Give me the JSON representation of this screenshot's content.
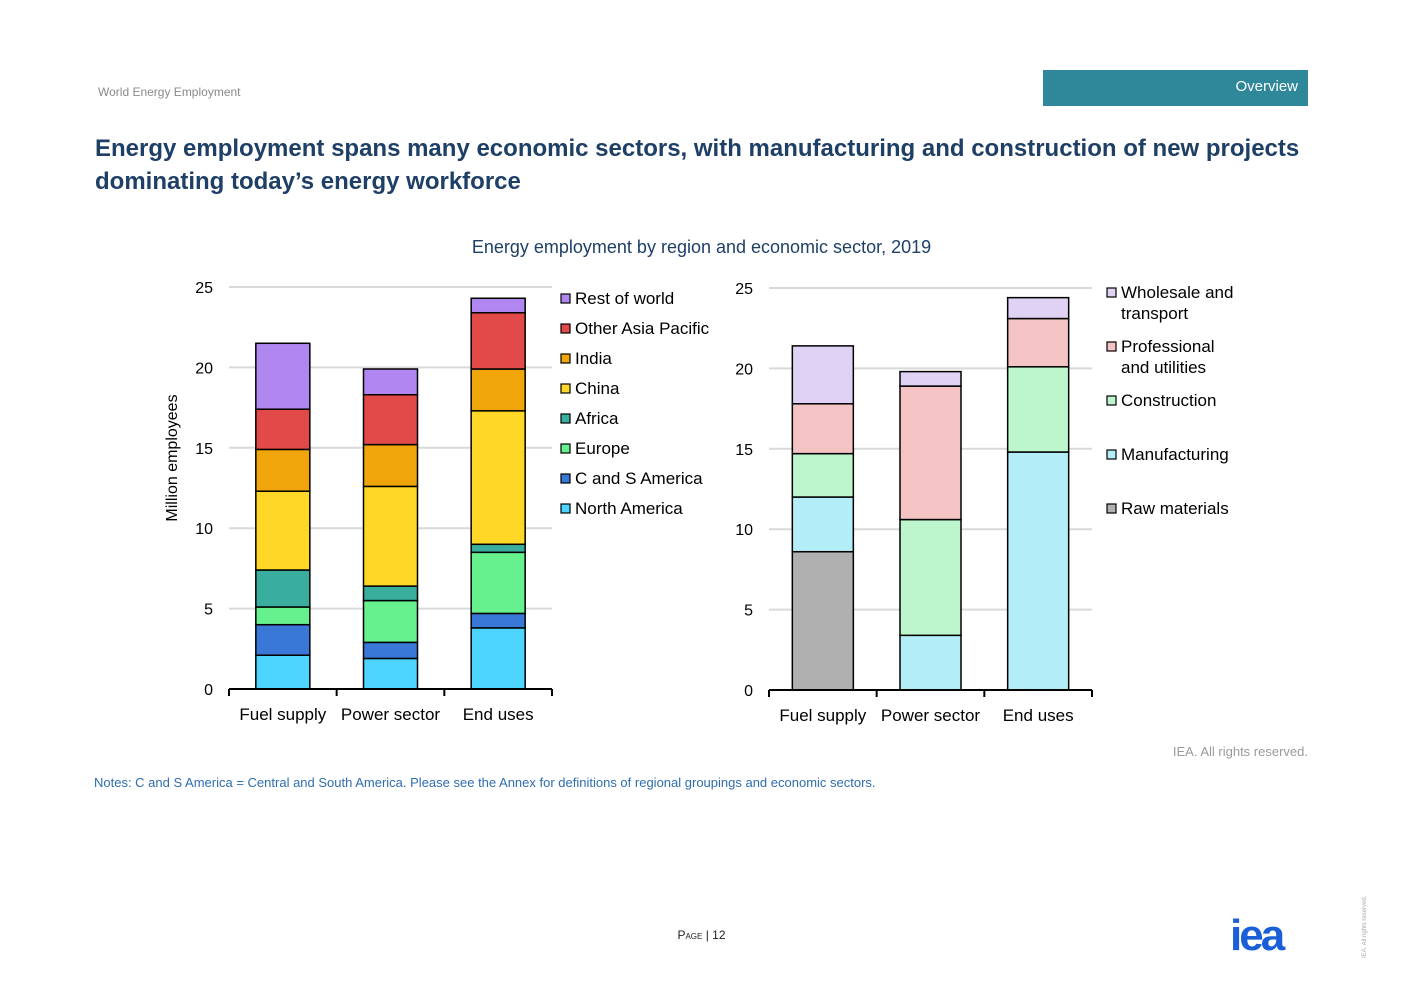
{
  "header": {
    "report_name": "World Energy Employment",
    "section_tab": "Overview"
  },
  "headline": "Energy employment spans many economic sectors, with manufacturing and construction of new projects dominating today’s energy workforce",
  "chart_data": [
    {
      "type": "bar",
      "stacked": true,
      "title": "Energy employment by region and economic sector, 2019",
      "ylabel": "Million employees",
      "xlabel": "",
      "categories": [
        "Fuel supply",
        "Power sector",
        "End uses"
      ],
      "ylim": [
        0,
        25
      ],
      "yticks": [
        0,
        5,
        10,
        15,
        20,
        25
      ],
      "grid": true,
      "legend_position": "right",
      "series": [
        {
          "name": "North America",
          "color": "#4dd5ff",
          "values": [
            2.1,
            1.9,
            3.8
          ]
        },
        {
          "name": "C and S America",
          "color": "#3a78d8",
          "values": [
            1.9,
            1.0,
            0.9
          ]
        },
        {
          "name": "Europe",
          "color": "#66f08e",
          "values": [
            1.1,
            2.6,
            3.8
          ]
        },
        {
          "name": "Africa",
          "color": "#3aae9e",
          "values": [
            2.3,
            0.9,
            0.5
          ]
        },
        {
          "name": "China",
          "color": "#ffd726",
          "values": [
            4.9,
            6.2,
            8.3
          ]
        },
        {
          "name": "India",
          "color": "#f0a60a",
          "values": [
            2.6,
            2.6,
            2.6
          ]
        },
        {
          "name": "Other Asia Pacific",
          "color": "#e24a4a",
          "values": [
            2.5,
            3.1,
            3.5
          ]
        },
        {
          "name": "Rest of world",
          "color": "#b087f0",
          "values": [
            4.1,
            1.6,
            0.9
          ]
        }
      ]
    },
    {
      "type": "bar",
      "stacked": true,
      "title": "",
      "ylabel": "",
      "xlabel": "",
      "categories": [
        "Fuel supply",
        "Power sector",
        "End uses"
      ],
      "ylim": [
        0,
        25
      ],
      "yticks": [
        0,
        5,
        10,
        15,
        20,
        25
      ],
      "grid": true,
      "legend_position": "right",
      "series": [
        {
          "name": "Raw materials",
          "color": "#b0b0b0",
          "values": [
            8.6,
            0,
            0
          ]
        },
        {
          "name": "Manufacturing",
          "color": "#b3eef8",
          "values": [
            3.4,
            3.4,
            14.8
          ]
        },
        {
          "name": "Construction",
          "color": "#bdf6cd",
          "values": [
            2.7,
            7.2,
            5.3
          ]
        },
        {
          "name": "Professional and utilities",
          "legend_lines": [
            "Professional",
            "and utilities"
          ],
          "color": "#f4c4c4",
          "values": [
            3.1,
            8.3,
            3.0
          ]
        },
        {
          "name": "Wholesale and transport",
          "legend_lines": [
            "Wholesale and",
            "transport"
          ],
          "color": "#dfd2f4",
          "values": [
            3.6,
            0.9,
            1.3
          ]
        }
      ]
    }
  ],
  "footer": {
    "copyright": "IEA. All rights reserved.",
    "notes": "Notes: C and S America = Central and South America. Please see the Annex for definitions of regional groupings and economic sectors.",
    "page_label": "Page",
    "page_number": "12",
    "logo_text": "iea",
    "side_note": "IEA. All rights reserved."
  }
}
